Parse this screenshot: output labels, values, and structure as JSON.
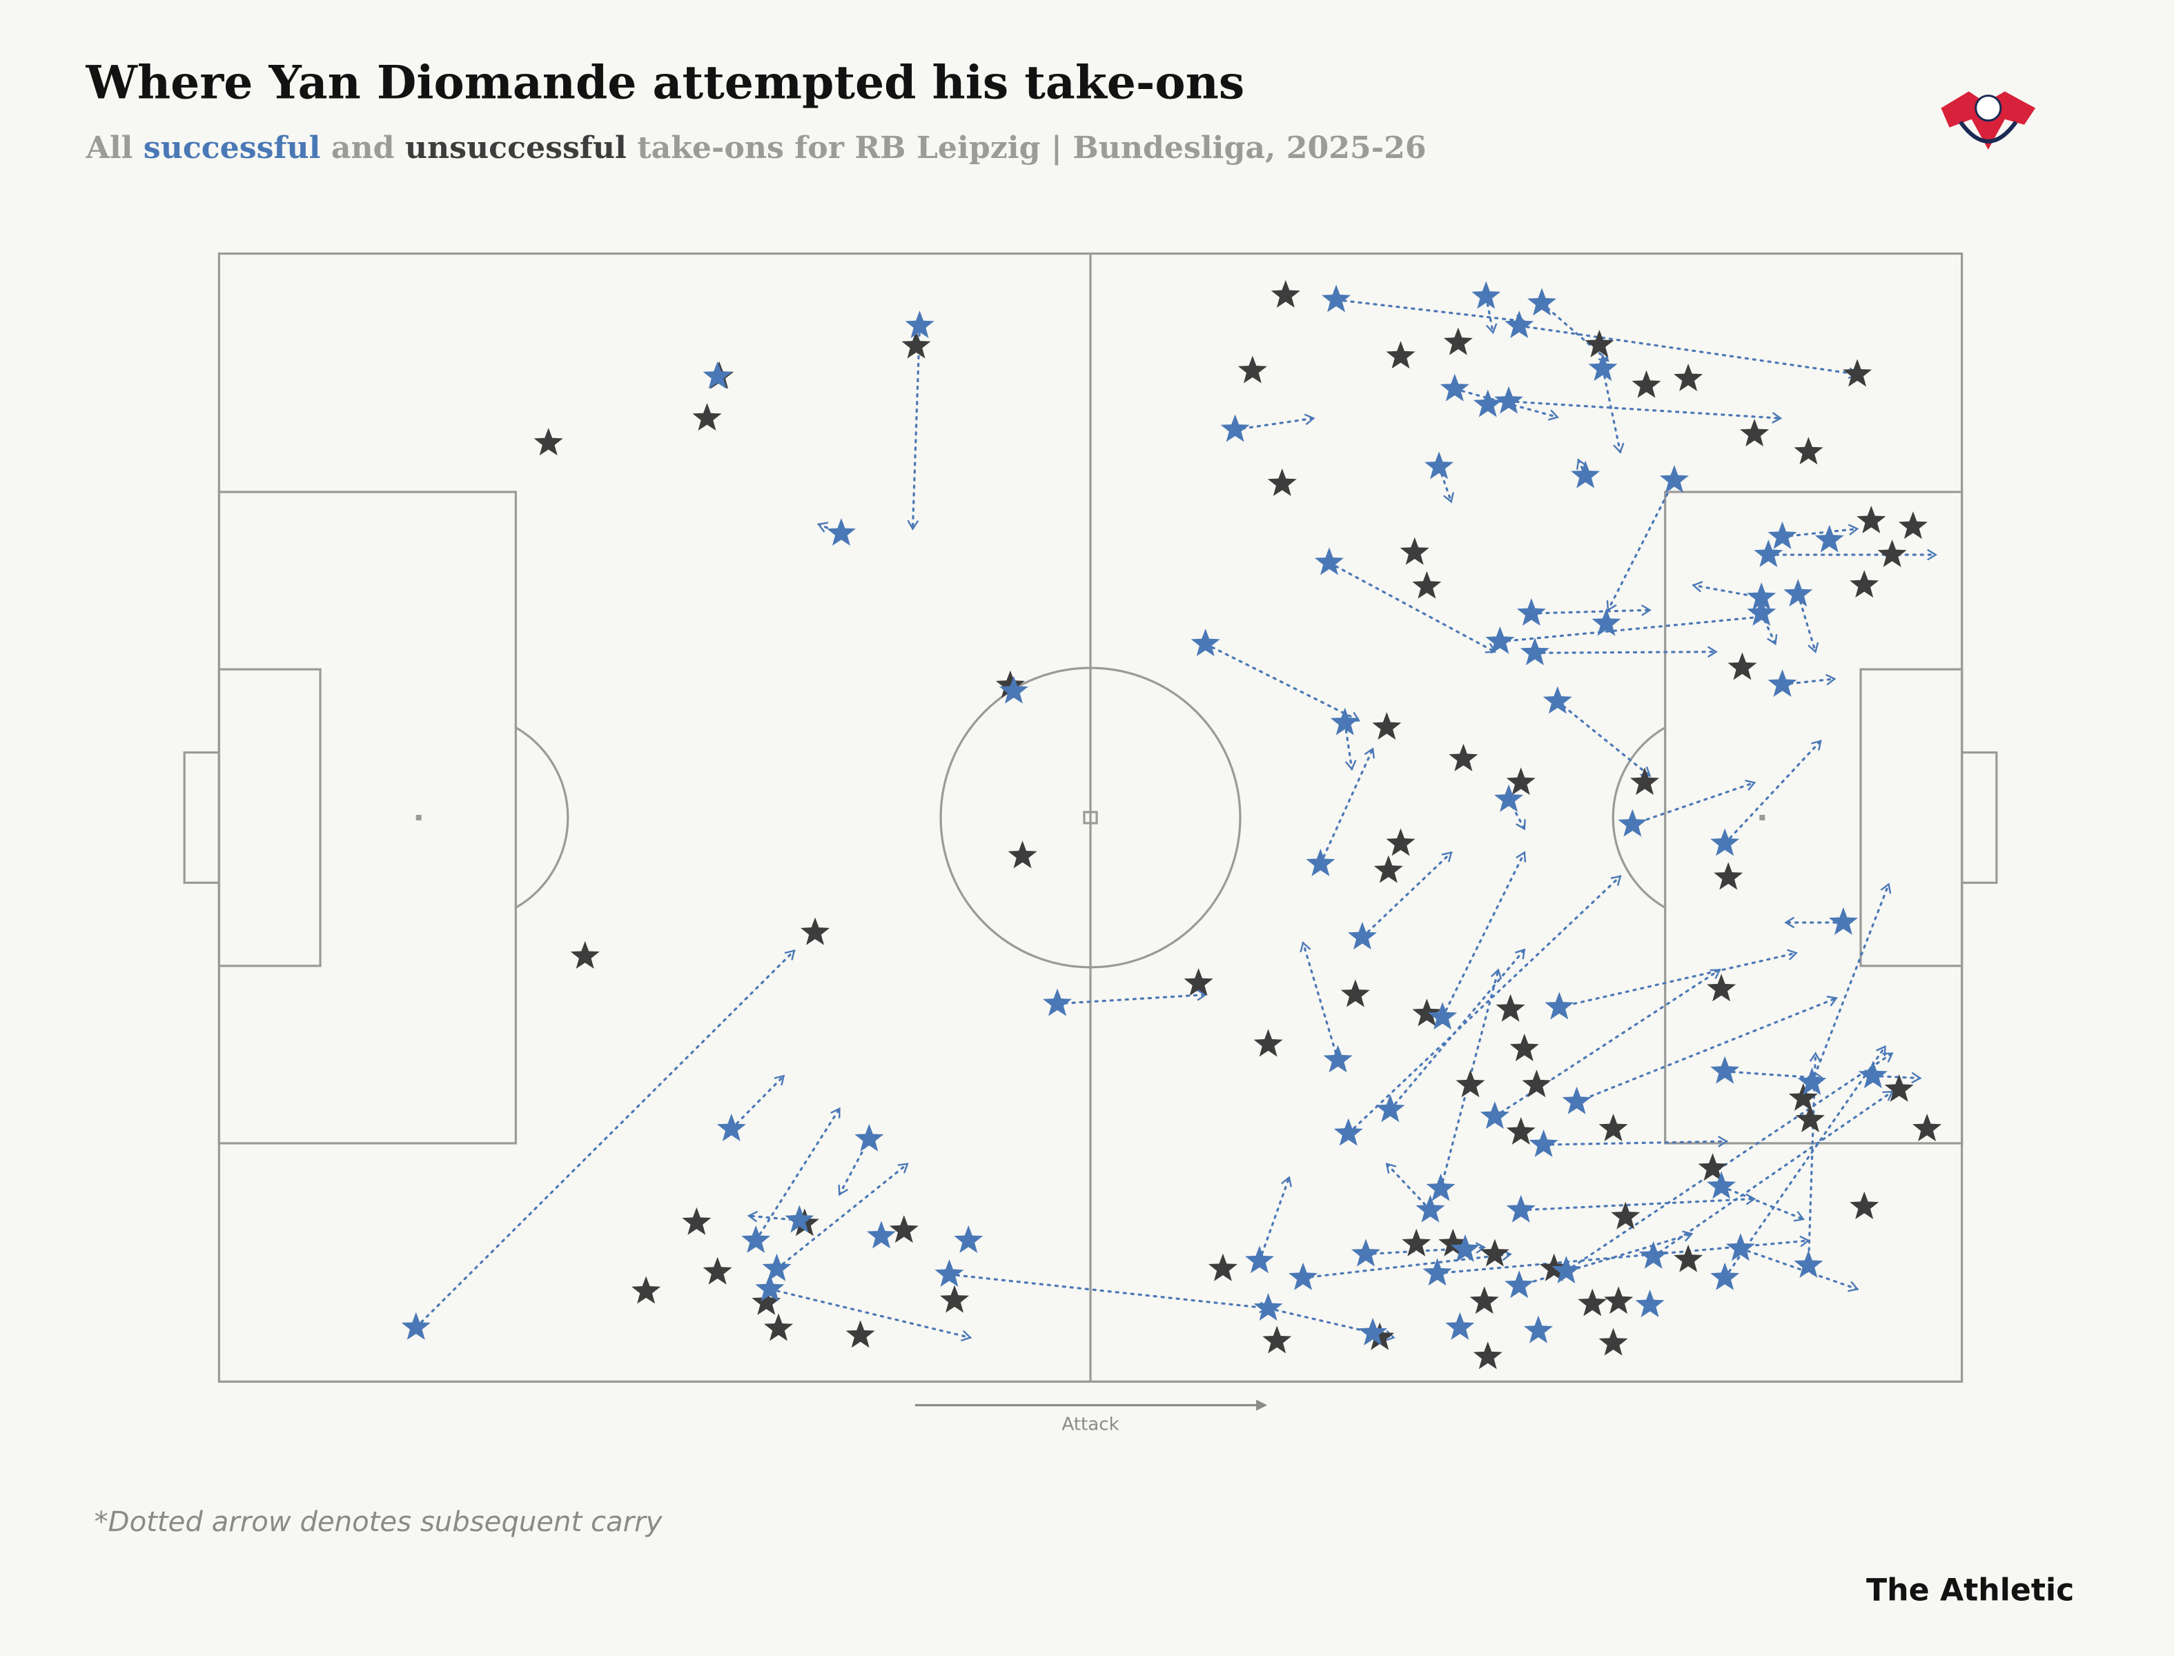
{
  "chart_data": {
    "type": "scatter",
    "title": "Where Yan Diomande attempted his take-ons",
    "subtitle_parts": [
      "All",
      "and",
      "take-ons for RB Leipzig | Bundesliga, 2025-26"
    ],
    "direction_label": "Attack",
    "footnote": "*Dotted arrow denotes subsequent carry",
    "brand": "The Athletic",
    "xlim": [
      0,
      100
    ],
    "ylim": [
      0,
      100
    ],
    "series": [
      {
        "name": "successful",
        "color": "#4a78b6",
        "x": [
          64.1,
          72.7,
          75.9,
          74.6,
          79.4,
          70.9,
          72.8,
          74.0,
          58.3,
          70.0,
          78.4,
          83.5,
          63.7,
          88.9,
          92.4,
          89.7,
          90.6,
          88.5,
          88.5,
          75.3,
          73.5,
          75.5,
          79.6,
          89.7,
          76.8,
          56.6,
          64.6,
          45.6,
          74.0,
          81.1,
          86.4,
          63.2,
          65.6,
          93.2,
          70.2,
          76.9,
          64.2,
          67.2,
          64.8,
          86.4,
          91.4,
          94.9,
          77.9,
          73.2,
          76.0,
          86.2,
          74.7,
          70.1,
          69.5,
          65.8,
          59.7,
          62.2,
          69.9,
          74.6,
          77.3,
          82.3,
          87.3,
          86.4,
          91.2,
          60.2,
          66.2,
          71.2,
          75.7,
          82.1,
          71.5,
          48.1,
          40.2,
          28.6,
          35.7,
          29.4,
          11.3,
          37.3,
          30.8,
          32.0,
          33.3,
          38.0,
          43.0,
          41.9,
          31.6
        ],
        "y": [
          95.9,
          96.2,
          95.6,
          93.6,
          89.8,
          88.0,
          86.6,
          86.9,
          84.4,
          81.1,
          80.3,
          79.9,
          72.6,
          73.3,
          74.6,
          74.9,
          69.8,
          69.5,
          68.1,
          68.1,
          65.6,
          64.6,
          67.2,
          61.8,
          60.3,
          65.4,
          58.4,
          61.2,
          51.6,
          49.4,
          47.7,
          45.9,
          39.4,
          40.7,
          32.3,
          33.2,
          28.5,
          24.1,
          22.0,
          27.5,
          26.5,
          27.1,
          24.8,
          23.5,
          21.0,
          17.3,
          15.2,
          17.1,
          15.2,
          11.3,
          10.7,
          9.2,
          9.6,
          8.5,
          9.8,
          11.1,
          11.8,
          9.2,
          10.3,
          6.5,
          4.3,
          4.8,
          4.5,
          6.8,
          11.7,
          33.5,
          93.6,
          89.1,
          75.2,
          22.4,
          4.8,
          21.5,
          12.5,
          10.0,
          14.3,
          12.9,
          12.5,
          9.5,
          8.2
        ],
        "carry_x": [
          74.9,
          73.1,
          79.7,
          94.0,
          80.4,
          76.8,
          null,
          89.6,
          62.8,
          70.7,
          78.0,
          79.7,
          73.2,
          98.5,
          null,
          94.0,
          91.6,
          84.6,
          89.3,
          82.1,
          88.5,
          85.9,
          null,
          92.7,
          82.1,
          65.4,
          65.0,
          null,
          74.9,
          88.1,
          91.9,
          66.2,
          70.7,
          89.9,
          74.9,
          90.5,
          62.2,
          74.9,
          80.4,
          92.0,
          95.8,
          97.6,
          92.8,
          86.1,
          86.5,
          90.9,
          88.1,
          73.4,
          67.0,
          72.6,
          61.4,
          74.1,
          91.2,
          84.5,
          96.0,
          96.0,
          94.0,
          95.6,
          91.6,
          67.4,
          null,
          null,
          null,
          null,
          null,
          56.6,
          39.8,
          null,
          34.4,
          32.4,
          33.0,
          35.6,
          35.6,
          39.5,
          30.4,
          null,
          null,
          60.2,
          43.1
        ],
        "carry_y": [
          94.0,
          93.0,
          90.5,
          89.3,
          82.4,
          85.5,
          null,
          85.4,
          85.4,
          78.0,
          81.7,
          68.4,
          64.7,
          73.3,
          null,
          75.6,
          64.7,
          70.6,
          65.4,
          68.4,
          67.8,
          64.7,
          null,
          62.3,
          53.7,
          58.6,
          54.3,
          null,
          49.0,
          53.1,
          56.8,
          56.1,
          46.9,
          40.7,
          46.9,
          38.0,
          38.9,
          38.3,
          44.8,
          26.9,
          44.1,
          26.9,
          34.0,
          36.5,
          21.3,
          14.4,
          16.2,
          36.5,
          19.3,
          11.9,
          18.1,
          11.3,
          12.5,
          13.1,
          29.1,
          25.7,
          8.2,
          29.7,
          29.1,
          3.9,
          null,
          null,
          null,
          null,
          null,
          34.3,
          75.6,
          null,
          76.0,
          27.1,
          38.2,
          16.6,
          24.2,
          19.3,
          14.7,
          null,
          null,
          6.5,
          3.9
        ]
      },
      {
        "name": "unsuccessful",
        "color": "#3d3d3d",
        "x": [
          61.2,
          59.3,
          67.8,
          71.1,
          79.2,
          81.9,
          84.3,
          94.0,
          88.1,
          91.2,
          61.0,
          68.6,
          69.3,
          94.8,
          97.2,
          96.0,
          94.4,
          87.4,
          67.0,
          71.4,
          74.7,
          81.8,
          67.8,
          67.1,
          86.6,
          65.2,
          86.2,
          69.3,
          74.1,
          74.9,
          60.2,
          71.8,
          75.6,
          74.7,
          80.0,
          90.9,
          91.3,
          96.4,
          98.0,
          85.7,
          80.7,
          94.4,
          57.6,
          68.7,
          70.8,
          73.2,
          76.6,
          72.6,
          78.8,
          80.3,
          84.3,
          60.7,
          66.6,
          72.8,
          80.0,
          28.7,
          28.0,
          18.9,
          40.0,
          45.4,
          46.1,
          34.2,
          21.0,
          56.2,
          27.4,
          33.6,
          39.3,
          28.6,
          24.5,
          31.4,
          32.1,
          36.8,
          42.2
        ],
        "y": [
          96.3,
          89.6,
          90.9,
          92.1,
          91.9,
          88.3,
          88.9,
          89.3,
          84.0,
          82.4,
          79.6,
          73.5,
          70.5,
          76.3,
          75.8,
          73.3,
          70.6,
          63.3,
          58.0,
          55.2,
          53.1,
          53.1,
          47.7,
          45.3,
          44.7,
          34.3,
          34.8,
          32.6,
          33.0,
          29.5,
          29.9,
          26.3,
          26.3,
          22.1,
          22.4,
          25.1,
          23.2,
          25.9,
          22.4,
          18.9,
          14.6,
          15.5,
          10.0,
          12.2,
          12.2,
          11.3,
          10.0,
          7.1,
          6.9,
          7.1,
          10.8,
          3.6,
          3.9,
          2.2,
          3.4,
          89.1,
          85.4,
          83.2,
          91.8,
          61.7,
          46.6,
          39.8,
          37.7,
          35.3,
          14.1,
          14.0,
          13.4,
          9.7,
          8.0,
          7.0,
          4.7,
          4.1,
          7.2
        ]
      }
    ]
  }
}
